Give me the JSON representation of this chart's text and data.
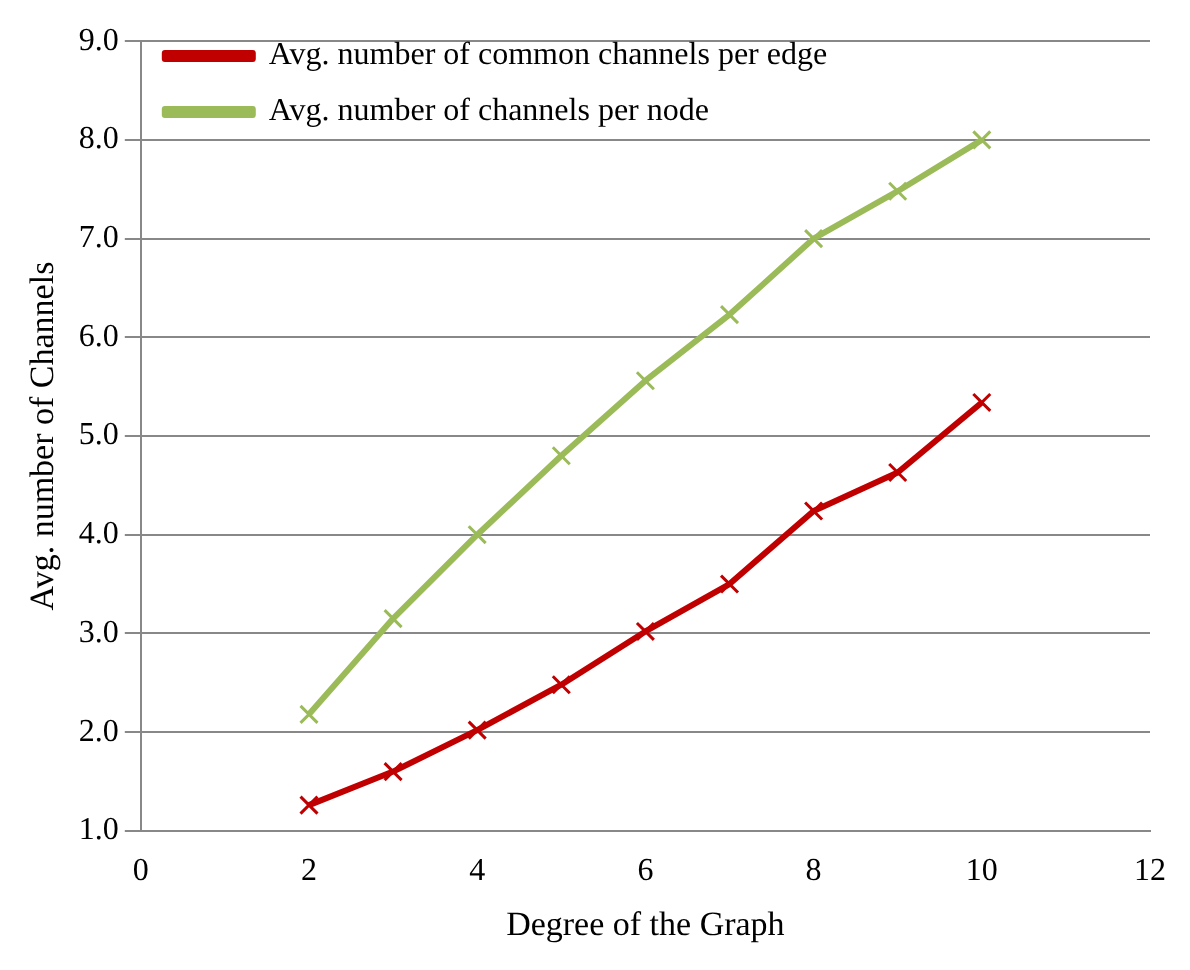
{
  "chart_data": {
    "type": "line",
    "xlabel": "Degree of the Graph",
    "ylabel": "Avg. number of Channels",
    "xlim": [
      0,
      12
    ],
    "xticks": [
      0,
      2,
      4,
      6,
      8,
      10,
      12
    ],
    "ylim": [
      1,
      9
    ],
    "yticks": [
      {
        "value": 1,
        "label": "1.0"
      },
      {
        "value": 2,
        "label": "2.0"
      },
      {
        "value": 3,
        "label": "3.0"
      },
      {
        "value": 4,
        "label": "4.0"
      },
      {
        "value": 5,
        "label": "5.0"
      },
      {
        "value": 6,
        "label": "6.0"
      },
      {
        "value": 7,
        "label": "7.0"
      },
      {
        "value": 8,
        "label": "8.0"
      },
      {
        "value": 9,
        "label": "9.0"
      }
    ],
    "grid": "y",
    "legend": "top left",
    "line_style": "solid",
    "series": [
      {
        "name": "Avg. number of common channels per edge",
        "color": "#c00000",
        "marker": "cross",
        "x": [
          2,
          3,
          4,
          5,
          6,
          7,
          8,
          9,
          10
        ],
        "values": [
          1.26,
          1.6,
          2.02,
          2.48,
          3.02,
          3.5,
          4.24,
          4.63,
          5.34
        ]
      },
      {
        "name": "Avg. number of channels per node",
        "color": "#9bbb59",
        "marker": "cross",
        "x": [
          2,
          3,
          4,
          5,
          6,
          7,
          8,
          9,
          10
        ],
        "values": [
          2.18,
          3.15,
          4.0,
          4.8,
          5.56,
          6.23,
          7.0,
          7.48,
          8.0
        ]
      }
    ]
  }
}
